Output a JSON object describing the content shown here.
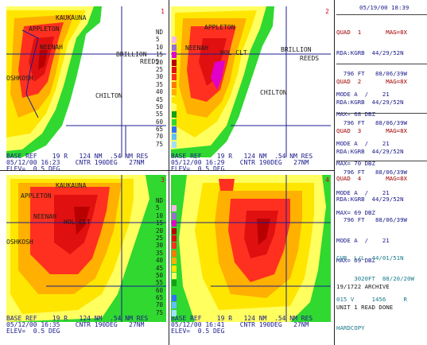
{
  "header": {
    "timestamp": "05/19/00 18:39"
  },
  "colors": {
    "scale": [
      "#f7b7e8",
      "#9a70d0",
      "#e000c8",
      "#b80000",
      "#e01010",
      "#ff3020",
      "#ff7a00",
      "#ffb000",
      "#ffe600",
      "#ffff60",
      "#14a014",
      "#30d830",
      "#3070ff",
      "#60c0ff",
      "#a0e0ff"
    ],
    "map_lines": "#1c1c90"
  },
  "panels": [
    {
      "number": "1",
      "cap_line1": "BASE REF    19 R   124 NM  .54 NM RES",
      "cap_line2": "05/12/00 16:23    CNTR 190DEG   27NM",
      "cap_line3": "ELEV=  0.5 DEG",
      "towns": [
        "KAUKAUNA",
        "APPLETON",
        "NEENAH",
        "BRILLION",
        "REEDS",
        "OSHKOSH",
        "CHILTON"
      ]
    },
    {
      "number": "2",
      "cap_line1": "BASE REF    19 R   124 NM  .54 NM RES",
      "cap_line2": "05/12/00 16:29    CNTR 190DEG   27NM",
      "cap_line3": "ELEV=  0.5 DEG",
      "towns": [
        "APPLETON",
        "NEENAH",
        "HOL CLT",
        "BRILLION",
        "REEDS",
        "CHILTON"
      ]
    },
    {
      "number": "3",
      "cap_line1": "BASE REF    19 R   124 NM  .54 NM RES",
      "cap_line2": "05/12/00 16:35    CNTR 190DEG   27NM",
      "cap_line3": "ELEV=  0.5 DEG",
      "towns": [
        "KAUKAUNA",
        "APPLETON",
        "NEENAH",
        "HOL CLT",
        "OSHKOSH"
      ]
    },
    {
      "number": "4",
      "cap_line1": "BASE REF    19 R   124 NM  .54 NM RES",
      "cap_line2": "05/12/00 16:41    CNTR 190DEG   27NM",
      "cap_line3": "ELEV=  0.5 DEG",
      "towns": []
    }
  ],
  "scale": {
    "title": "ND",
    "values": [
      "5",
      "10",
      "15",
      "20",
      "25",
      "30",
      "35",
      "40",
      "45",
      "50",
      "55",
      "60",
      "65",
      "70",
      "75"
    ]
  },
  "quads": [
    {
      "title": "QUAD  1       MAG=8X",
      "l1": "RDA:KGRB  44/29/52N",
      "l2": "  796 FT   88/06/39W",
      "l3": "MODE A  /    21",
      "l4": "MAX= 68 DBZ"
    },
    {
      "title": "QUAD  2       MAG=8X",
      "l1": "RDA:KGRB  44/29/52N",
      "l2": "  796 FT   88/06/39W",
      "l3": "MODE A  /    21",
      "l4": "MAX= 70 DBZ"
    },
    {
      "title": "QUAD  3       MAG=8X",
      "l1": "RDA:KGRB  44/29/52N",
      "l2": "  796 FT   88/06/39W",
      "l3": "MODE A  /    21",
      "l4": "MAX= 69 DBZ"
    },
    {
      "title": "QUAD  4       MAG=8X",
      "l1": "RDA:KGRB  44/29/52N",
      "l2": "  796 FT   88/06/39W",
      "l3": "MODE A  /    21",
      "l4": "MAX= 69 DBZ"
    }
  ],
  "cursor": {
    "l1": "CUR  L/L  44/01/51N",
    "l2": "     3020FT  88/20/20W",
    "l3": "015 V     1456     R"
  },
  "status": {
    "l1": "19/1722 ARCHIVE",
    "l2": "UNIT 1 READ DONE",
    "l3": "HARDCOPY"
  }
}
